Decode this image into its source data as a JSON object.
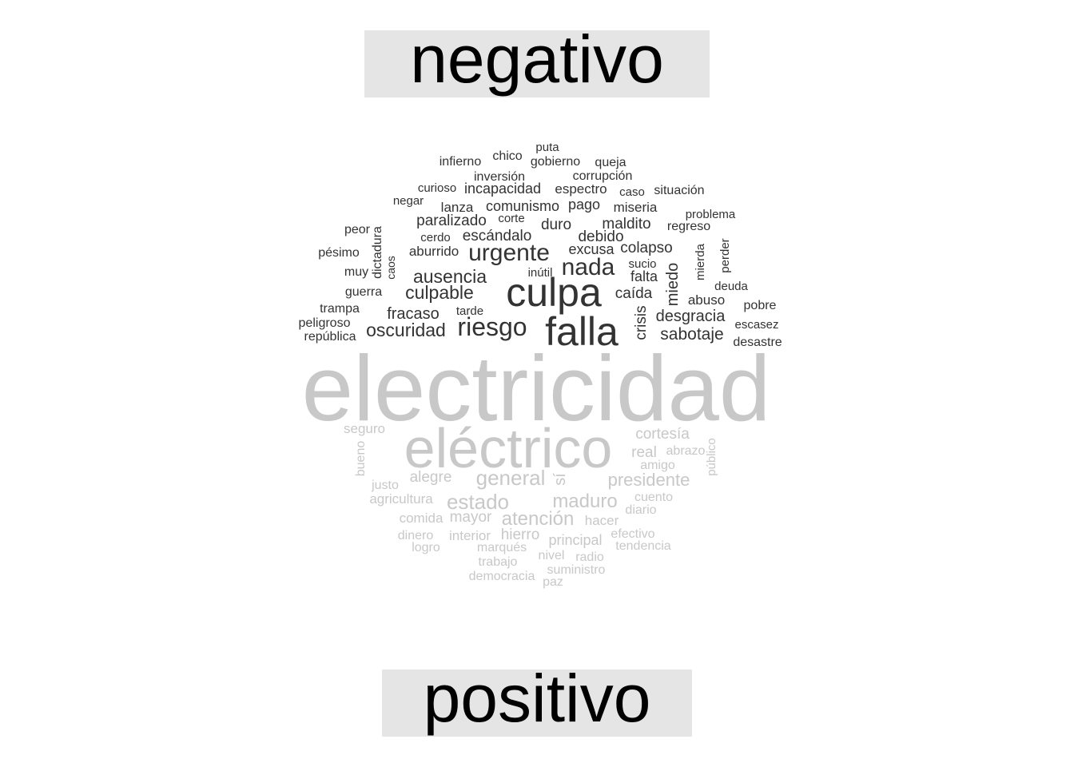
{
  "labels": {
    "negative": "negativo",
    "positive": "positivo"
  },
  "colors": {
    "negative": "#333333",
    "positive": "#c8c8c8",
    "label_bg": "#e5e5e5"
  },
  "words": [
    {
      "text": "electricidad",
      "group": "positive"
    },
    {
      "text": "eléctrico",
      "group": "positive"
    },
    {
      "text": "culpa",
      "group": "negative"
    },
    {
      "text": "falla",
      "group": "negative"
    },
    {
      "text": "riesgo",
      "group": "negative"
    },
    {
      "text": "urgente",
      "group": "negative"
    },
    {
      "text": "nada",
      "group": "negative"
    },
    {
      "text": "ausencia",
      "group": "negative"
    },
    {
      "text": "culpable",
      "group": "negative"
    },
    {
      "text": "oscuridad",
      "group": "negative"
    },
    {
      "text": "sabotaje",
      "group": "negative"
    },
    {
      "text": "desgracia",
      "group": "negative"
    },
    {
      "text": "fracaso",
      "group": "negative"
    },
    {
      "text": "caída",
      "group": "negative"
    },
    {
      "text": "escándalo",
      "group": "negative"
    },
    {
      "text": "colapso",
      "group": "negative"
    },
    {
      "text": "maldito",
      "group": "negative"
    },
    {
      "text": "debido",
      "group": "negative"
    },
    {
      "text": "paralizado",
      "group": "negative"
    },
    {
      "text": "comunismo",
      "group": "negative"
    },
    {
      "text": "excusa",
      "group": "negative"
    },
    {
      "text": "falta",
      "group": "negative"
    },
    {
      "text": "duro",
      "group": "negative"
    },
    {
      "text": "pago",
      "group": "negative"
    },
    {
      "text": "espectro",
      "group": "negative"
    },
    {
      "text": "incapacidad",
      "group": "negative"
    },
    {
      "text": "crisis",
      "group": "negative"
    },
    {
      "text": "miedo",
      "group": "negative"
    },
    {
      "text": "abuso",
      "group": "negative"
    },
    {
      "text": "aburrido",
      "group": "negative"
    },
    {
      "text": "lanza",
      "group": "negative"
    },
    {
      "text": "miseria",
      "group": "negative"
    },
    {
      "text": "situación",
      "group": "negative"
    },
    {
      "text": "inversión",
      "group": "negative"
    },
    {
      "text": "corrupción",
      "group": "negative"
    },
    {
      "text": "gobierno",
      "group": "negative"
    },
    {
      "text": "infierno",
      "group": "negative"
    },
    {
      "text": "chico",
      "group": "negative"
    },
    {
      "text": "puta",
      "group": "negative"
    },
    {
      "text": "queja",
      "group": "negative"
    },
    {
      "text": "curioso",
      "group": "negative"
    },
    {
      "text": "caso",
      "group": "negative"
    },
    {
      "text": "negar",
      "group": "negative"
    },
    {
      "text": "corte",
      "group": "negative"
    },
    {
      "text": "problema",
      "group": "negative"
    },
    {
      "text": "regreso",
      "group": "negative"
    },
    {
      "text": "peor",
      "group": "negative"
    },
    {
      "text": "cerdo",
      "group": "negative"
    },
    {
      "text": "dictadura",
      "group": "negative"
    },
    {
      "text": "caos",
      "group": "negative"
    },
    {
      "text": "pésimo",
      "group": "negative"
    },
    {
      "text": "muy",
      "group": "negative"
    },
    {
      "text": "inútil",
      "group": "negative"
    },
    {
      "text": "sucio",
      "group": "negative"
    },
    {
      "text": "mierda",
      "group": "negative"
    },
    {
      "text": "perder",
      "group": "negative"
    },
    {
      "text": "deuda",
      "group": "negative"
    },
    {
      "text": "guerra",
      "group": "negative"
    },
    {
      "text": "trampa",
      "group": "negative"
    },
    {
      "text": "tarde",
      "group": "negative"
    },
    {
      "text": "pobre",
      "group": "negative"
    },
    {
      "text": "peligroso",
      "group": "negative"
    },
    {
      "text": "república",
      "group": "negative"
    },
    {
      "text": "escasez",
      "group": "negative"
    },
    {
      "text": "desastre",
      "group": "negative"
    },
    {
      "text": "general",
      "group": "positive"
    },
    {
      "text": "presidente",
      "group": "positive"
    },
    {
      "text": "estado",
      "group": "positive"
    },
    {
      "text": "maduro",
      "group": "positive"
    },
    {
      "text": "atención",
      "group": "positive"
    },
    {
      "text": "cortesía",
      "group": "positive"
    },
    {
      "text": "alegre",
      "group": "positive"
    },
    {
      "text": "sí",
      "group": "positive"
    },
    {
      "text": "seguro",
      "group": "positive"
    },
    {
      "text": "real",
      "group": "positive"
    },
    {
      "text": "abrazo",
      "group": "positive"
    },
    {
      "text": "amigo",
      "group": "positive"
    },
    {
      "text": "público",
      "group": "positive"
    },
    {
      "text": "bueno",
      "group": "positive"
    },
    {
      "text": "justo",
      "group": "positive"
    },
    {
      "text": "agricultura",
      "group": "positive"
    },
    {
      "text": "cuento",
      "group": "positive"
    },
    {
      "text": "diario",
      "group": "positive"
    },
    {
      "text": "comida",
      "group": "positive"
    },
    {
      "text": "mayor",
      "group": "positive"
    },
    {
      "text": "hacer",
      "group": "positive"
    },
    {
      "text": "dinero",
      "group": "positive"
    },
    {
      "text": "interior",
      "group": "positive"
    },
    {
      "text": "hierro",
      "group": "positive"
    },
    {
      "text": "principal",
      "group": "positive"
    },
    {
      "text": "efectivo",
      "group": "positive"
    },
    {
      "text": "logro",
      "group": "positive"
    },
    {
      "text": "marqués",
      "group": "positive"
    },
    {
      "text": "tendencia",
      "group": "positive"
    },
    {
      "text": "nivel",
      "group": "positive"
    },
    {
      "text": "radio",
      "group": "positive"
    },
    {
      "text": "trabajo",
      "group": "positive"
    },
    {
      "text": "suministro",
      "group": "positive"
    },
    {
      "text": "democracia",
      "group": "positive"
    },
    {
      "text": "paz",
      "group": "positive"
    }
  ]
}
